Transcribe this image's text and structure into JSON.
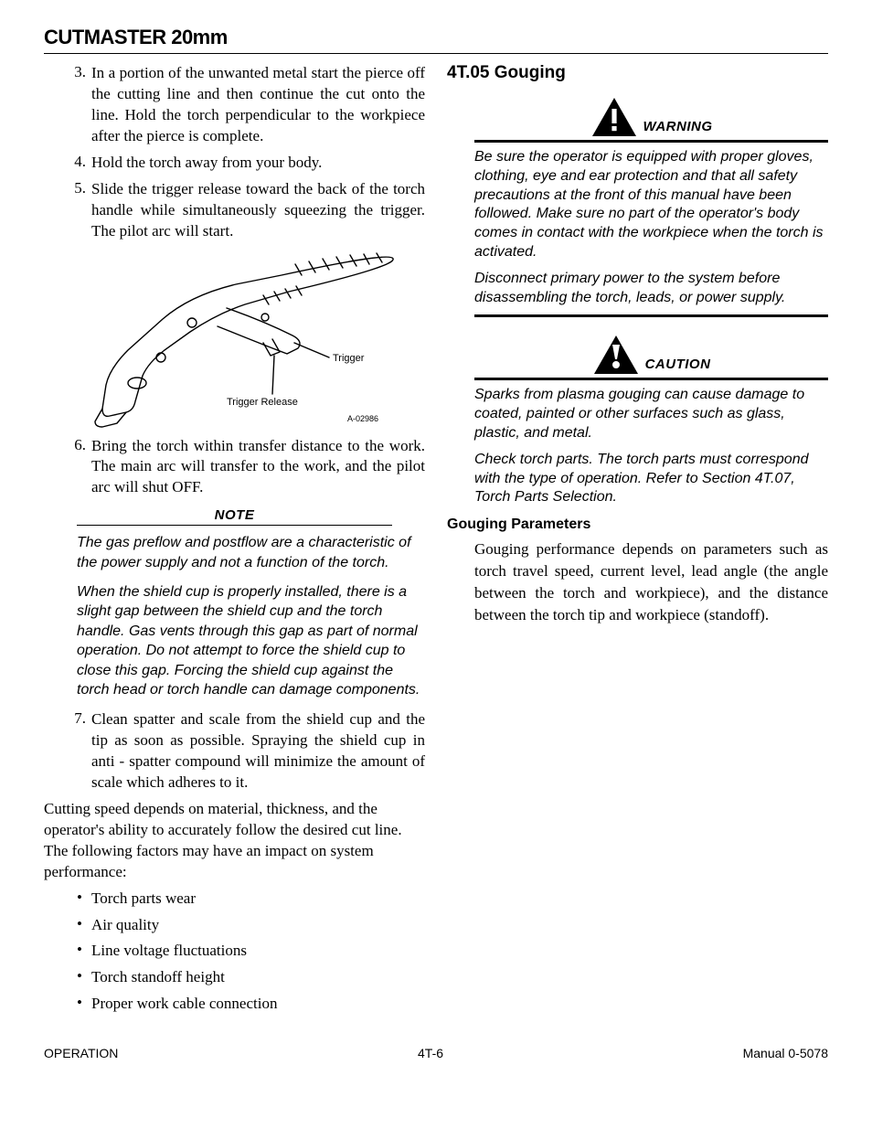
{
  "header": {
    "title": "CUTMASTER 20mm"
  },
  "left": {
    "steps_a": [
      {
        "n": "3.",
        "t": "In a portion of the unwanted metal start the pierce off the cutting line and then continue the cut onto the line. Hold the torch perpendicular to the workpiece after the pierce is complete."
      },
      {
        "n": "4.",
        "t": "Hold the torch away from your body."
      },
      {
        "n": "5.",
        "t": "Slide the trigger release toward the back of the torch handle while simultaneously squeezing the trigger.  The pilot arc will start."
      }
    ],
    "diagram": {
      "label_trigger": "Trigger",
      "label_release": "Trigger Release",
      "art_code": "A-02986",
      "stroke": "#000000",
      "fill": "#ffffff",
      "label_fontsize": 11
    },
    "steps_b": [
      {
        "n": "6.",
        "t": "Bring the torch within transfer distance to the work. The main arc will transfer to the work, and the pilot arc will shut OFF."
      }
    ],
    "note": {
      "heading": "NOTE",
      "paras": [
        "The gas preflow and postflow are a characteristic of the power supply and not a function of the torch.",
        "When the shield cup is properly installed, there is a slight gap between the shield cup and the torch handle.  Gas vents through this gap as part of normal operation.  Do not attempt to force the shield cup to close this gap.  Forcing the shield cup against the torch head or torch handle can damage components."
      ]
    },
    "steps_c": [
      {
        "n": "7.",
        "t": "Clean spatter and scale from the shield cup and the tip as soon as possible. Spraying the shield cup in anti - spatter compound will minimize the amount of scale which adheres to it."
      }
    ],
    "closing_para": "Cutting speed depends on material, thickness, and the operator's ability to accurately follow the desired cut line.  The following factors may have an impact on system performance:",
    "bullets": [
      "Torch parts wear",
      "Air quality",
      "Line voltage fluctuations",
      "Torch standoff height",
      "Proper work cable connection"
    ]
  },
  "right": {
    "section_heading": "4T.05 Gouging",
    "warning": {
      "label": "WARNING",
      "paras": [
        "Be sure the operator is equipped with proper gloves, clothing, eye and ear protection and that all safety precautions at the front of this manual have been followed.  Make sure no part of the operator's body comes in contact with the workpiece when the torch is activated.",
        "Disconnect primary power to the system before disassembling the torch, leads, or power supply."
      ]
    },
    "caution": {
      "label": "CAUTION",
      "paras": [
        "Sparks from plasma gouging can cause damage to coated, painted or other surfaces such as glass, plastic, and metal.",
        "Check torch parts. The torch parts must correspond with the type of operation. Refer to Section 4T.07, Torch Parts Selection."
      ]
    },
    "sub_heading": "Gouging Parameters",
    "sub_para": "Gouging performance depends on parameters such as torch travel speed, current level, lead angle (the angle between the torch and workpiece), and the distance between the torch tip and workpiece (standoff)."
  },
  "footer": {
    "left": "OPERATION",
    "center": "4T-6",
    "right": "Manual 0-5078"
  },
  "colors": {
    "text": "#000000",
    "bg": "#ffffff",
    "rule": "#000000"
  }
}
